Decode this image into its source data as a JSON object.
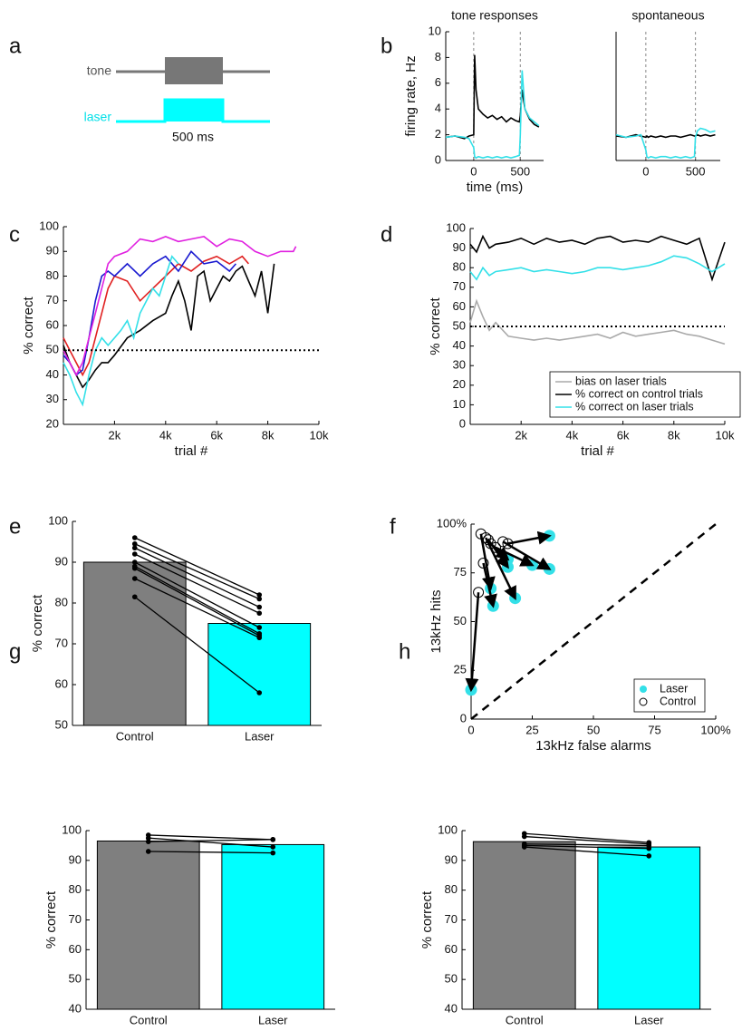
{
  "panel_labels": [
    "a",
    "b",
    "c",
    "d",
    "e",
    "f",
    "g",
    "h"
  ],
  "schematic": {
    "tone_label": "tone",
    "laser_label": "laser",
    "duration_label": "500 ms"
  },
  "chart_data": [
    {
      "type": "line",
      "title": "tone responses",
      "ylabel": "firing rate, Hz",
      "xlabel": "time (ms)",
      "x": [
        -300,
        -200,
        -100,
        -50,
        0,
        10,
        25,
        50,
        100,
        150,
        200,
        250,
        300,
        350,
        400,
        450,
        490,
        500,
        520,
        550,
        600,
        650,
        700
      ],
      "series": [
        {
          "color": "#000000",
          "values": [
            1.8,
            1.9,
            1.7,
            1.9,
            2.0,
            8.2,
            5.5,
            4.0,
            3.6,
            3.3,
            3.5,
            3.2,
            3.4,
            3.0,
            3.3,
            3.1,
            3.0,
            3.5,
            5.5,
            4.0,
            3.2,
            2.8,
            2.6
          ]
        },
        {
          "color": "#33e0e8",
          "values": [
            1.8,
            1.9,
            1.8,
            1.7,
            1.0,
            0.3,
            0.2,
            0.3,
            0.2,
            0.3,
            0.2,
            0.3,
            0.2,
            0.3,
            0.2,
            0.3,
            0.4,
            2.0,
            7.0,
            4.0,
            3.3,
            3.0,
            2.7
          ]
        }
      ],
      "vlines": [
        0,
        500
      ],
      "xlim": [
        -300,
        750
      ],
      "ylim": [
        0,
        10
      ],
      "xticks": [
        0,
        500
      ],
      "yticks": [
        0,
        2,
        4,
        6,
        8,
        10
      ]
    },
    {
      "type": "line",
      "title": "spontaneous",
      "x": [
        -300,
        -200,
        -100,
        -50,
        0,
        10,
        25,
        50,
        100,
        150,
        200,
        250,
        300,
        350,
        400,
        450,
        490,
        500,
        520,
        550,
        600,
        650,
        700
      ],
      "series": [
        {
          "color": "#000000",
          "values": [
            1.9,
            1.8,
            2.0,
            1.9,
            1.8,
            1.9,
            1.8,
            1.9,
            1.8,
            1.9,
            1.8,
            1.9,
            1.9,
            1.8,
            1.9,
            2.0,
            1.9,
            1.9,
            2.0,
            1.9,
            2.0,
            1.9,
            2.0
          ]
        },
        {
          "color": "#33e0e8",
          "values": [
            2.0,
            1.8,
            1.9,
            2.0,
            0.8,
            0.3,
            0.2,
            0.3,
            0.2,
            0.3,
            0.3,
            0.2,
            0.3,
            0.2,
            0.3,
            0.2,
            0.3,
            1.8,
            2.3,
            2.5,
            2.4,
            2.2,
            2.3
          ]
        }
      ],
      "vlines": [
        0,
        500
      ],
      "xlim": [
        -300,
        750
      ],
      "ylim": [
        0,
        10
      ],
      "xticks": [
        0,
        500
      ]
    },
    {
      "type": "line",
      "ylabel": "% correct",
      "xlabel": "trial #",
      "series": [
        {
          "color": "#000000",
          "x": [
            0,
            250,
            500,
            750,
            1000,
            1250,
            1500,
            1750,
            2000,
            2500,
            3000,
            3500,
            4000,
            4250,
            4500,
            4750,
            5000,
            5250,
            5500,
            5750,
            6000,
            6250,
            6500,
            6750,
            7000,
            7250,
            7500,
            7750,
            8000,
            8250
          ],
          "values": [
            52,
            45,
            40,
            35,
            38,
            42,
            45,
            45,
            48,
            55,
            58,
            62,
            65,
            72,
            78,
            70,
            58,
            80,
            82,
            70,
            75,
            80,
            78,
            82,
            84,
            78,
            72,
            82,
            65,
            85
          ]
        },
        {
          "color": "#e02020",
          "x": [
            0,
            250,
            500,
            750,
            1000,
            1250,
            1500,
            1750,
            2000,
            2500,
            3000,
            3500,
            4000,
            4500,
            5000,
            5500,
            6000,
            6500,
            7000,
            7250
          ],
          "values": [
            55,
            50,
            45,
            40,
            45,
            55,
            65,
            75,
            80,
            78,
            70,
            75,
            80,
            85,
            82,
            86,
            88,
            85,
            88,
            85
          ]
        },
        {
          "color": "#1a1ad0",
          "x": [
            0,
            250,
            500,
            750,
            1000,
            1250,
            1500,
            1750,
            2000,
            2500,
            3000,
            3500,
            4000,
            4500,
            5000,
            5500,
            6000,
            6500,
            6750
          ],
          "values": [
            48,
            45,
            40,
            42,
            55,
            70,
            80,
            82,
            80,
            85,
            80,
            85,
            88,
            82,
            90,
            85,
            86,
            82,
            85
          ]
        },
        {
          "color": "#e020e0",
          "x": [
            0,
            250,
            500,
            750,
            1000,
            1250,
            1500,
            1750,
            2000,
            2500,
            3000,
            3500,
            4000,
            4500,
            5000,
            5500,
            6000,
            6500,
            7000,
            7500,
            8000,
            8500,
            9000,
            9100
          ],
          "values": [
            50,
            45,
            40,
            45,
            55,
            65,
            75,
            85,
            88,
            90,
            95,
            94,
            96,
            94,
            95,
            96,
            92,
            95,
            94,
            90,
            88,
            90,
            90,
            92
          ]
        },
        {
          "color": "#33e0e8",
          "x": [
            0,
            250,
            500,
            750,
            1000,
            1250,
            1500,
            1750,
            2000,
            2250,
            2500,
            2750,
            3000,
            3250,
            3500,
            3750,
            4000,
            4250,
            4500
          ],
          "values": [
            45,
            40,
            33,
            28,
            40,
            50,
            55,
            52,
            55,
            58,
            62,
            55,
            65,
            70,
            75,
            72,
            80,
            88,
            85
          ]
        }
      ],
      "hlines": [
        50
      ],
      "xlim": [
        0,
        10000
      ],
      "ylim": [
        20,
        100
      ],
      "xticks": [
        {
          "value": 2000,
          "label": "2k"
        },
        {
          "value": 4000,
          "label": "4k"
        },
        {
          "value": 6000,
          "label": "6k"
        },
        {
          "value": 8000,
          "label": "8k"
        },
        {
          "value": 10000,
          "label": "10k"
        }
      ],
      "yticks": [
        20,
        30,
        40,
        50,
        60,
        70,
        80,
        90,
        100
      ]
    },
    {
      "type": "line",
      "ylabel": "% correct",
      "xlabel": "trial #",
      "x": [
        0,
        250,
        500,
        750,
        1000,
        1500,
        2000,
        2500,
        3000,
        3500,
        4000,
        4500,
        5000,
        5500,
        6000,
        6500,
        7000,
        7500,
        8000,
        8500,
        9000,
        9500,
        10000
      ],
      "series": [
        {
          "name": "bias on laser trials",
          "color": "#aaaaaa",
          "values": [
            52,
            63,
            55,
            48,
            52,
            45,
            44,
            43,
            44,
            43,
            44,
            45,
            46,
            44,
            47,
            45,
            46,
            47,
            48,
            46,
            45,
            43,
            41
          ]
        },
        {
          "name": "% correct on control trials",
          "color": "#000000",
          "values": [
            92,
            88,
            96,
            90,
            92,
            93,
            95,
            92,
            95,
            93,
            94,
            92,
            95,
            96,
            93,
            94,
            93,
            96,
            94,
            92,
            95,
            74,
            93
          ]
        },
        {
          "name": "% correct on laser trials",
          "color": "#33e0e8",
          "values": [
            78,
            74,
            80,
            76,
            78,
            79,
            80,
            78,
            79,
            78,
            77,
            78,
            80,
            80,
            79,
            80,
            81,
            83,
            86,
            85,
            82,
            78,
            82
          ]
        }
      ],
      "hlines": [
        50
      ],
      "legend": "lower right",
      "xlim": [
        0,
        10000
      ],
      "ylim": [
        0,
        100
      ],
      "xticks": [
        {
          "value": 2000,
          "label": "2k"
        },
        {
          "value": 4000,
          "label": "4k"
        },
        {
          "value": 6000,
          "label": "6k"
        },
        {
          "value": 8000,
          "label": "8k"
        },
        {
          "value": 10000,
          "label": "10k"
        }
      ],
      "yticks": [
        0,
        10,
        20,
        30,
        40,
        50,
        60,
        70,
        80,
        90,
        100
      ]
    },
    {
      "type": "bar",
      "ylabel": "% correct",
      "categories": [
        "Control",
        "Laser"
      ],
      "values": [
        90,
        75
      ],
      "colors": [
        "#7f7f7f",
        "#00ffff"
      ],
      "paired_values": [
        [
          96,
          82
        ],
        [
          94.5,
          81
        ],
        [
          93.5,
          79
        ],
        [
          92,
          77.5
        ],
        [
          90,
          74
        ],
        [
          89,
          72.5
        ],
        [
          88.5,
          72
        ],
        [
          86,
          71.5
        ],
        [
          81.5,
          58
        ]
      ],
      "ylim": [
        50,
        100
      ],
      "yticks": [
        50,
        60,
        70,
        80,
        90,
        100
      ]
    },
    {
      "type": "scatter",
      "xlabel": "13kHz false alarms",
      "ylabel": "13kHz hits",
      "series": [
        {
          "name": "Laser",
          "color": "#33e0e8",
          "x": [
            0,
            9,
            8,
            18,
            15,
            15,
            25,
            32,
            32
          ],
          "values": [
            15,
            58,
            67,
            62,
            78,
            82,
            79,
            77,
            94
          ]
        },
        {
          "name": "Control",
          "color": "#000000",
          "x": [
            3,
            5,
            4,
            6,
            7,
            8,
            10,
            13,
            15
          ],
          "values": [
            65,
            80,
            95,
            93,
            92,
            90,
            88,
            91,
            90
          ]
        }
      ],
      "arrows": true,
      "diagonal": true,
      "legend": "lower right",
      "xlim": [
        0,
        100
      ],
      "ylim": [
        0,
        100
      ],
      "xticks": [
        0,
        25,
        50,
        75,
        {
          "value": 100,
          "label": "100%"
        }
      ],
      "yticks": [
        0,
        25,
        50,
        75,
        {
          "value": 100,
          "label": "100%"
        }
      ]
    },
    {
      "type": "bar",
      "ylabel": "% correct",
      "categories": [
        "Control",
        "Laser"
      ],
      "values": [
        96.5,
        95.3
      ],
      "colors": [
        "#7f7f7f",
        "#00ffff"
      ],
      "paired_values": [
        [
          98.5,
          97
        ],
        [
          97.5,
          94.5
        ],
        [
          96.3,
          97
        ],
        [
          93,
          92.5
        ]
      ],
      "ylim": [
        40,
        100
      ],
      "yticks": [
        40,
        50,
        60,
        70,
        80,
        90,
        100
      ]
    },
    {
      "type": "bar",
      "ylabel": "% correct",
      "categories": [
        "Control",
        "Laser"
      ],
      "values": [
        96.3,
        94.5
      ],
      "colors": [
        "#7f7f7f",
        "#00ffff"
      ],
      "paired_values": [
        [
          99,
          96
        ],
        [
          98,
          95.5
        ],
        [
          95.5,
          95
        ],
        [
          95,
          94
        ],
        [
          94.5,
          91.5
        ]
      ],
      "ylim": [
        40,
        100
      ],
      "yticks": [
        40,
        50,
        60,
        70,
        80,
        90,
        100
      ]
    }
  ]
}
